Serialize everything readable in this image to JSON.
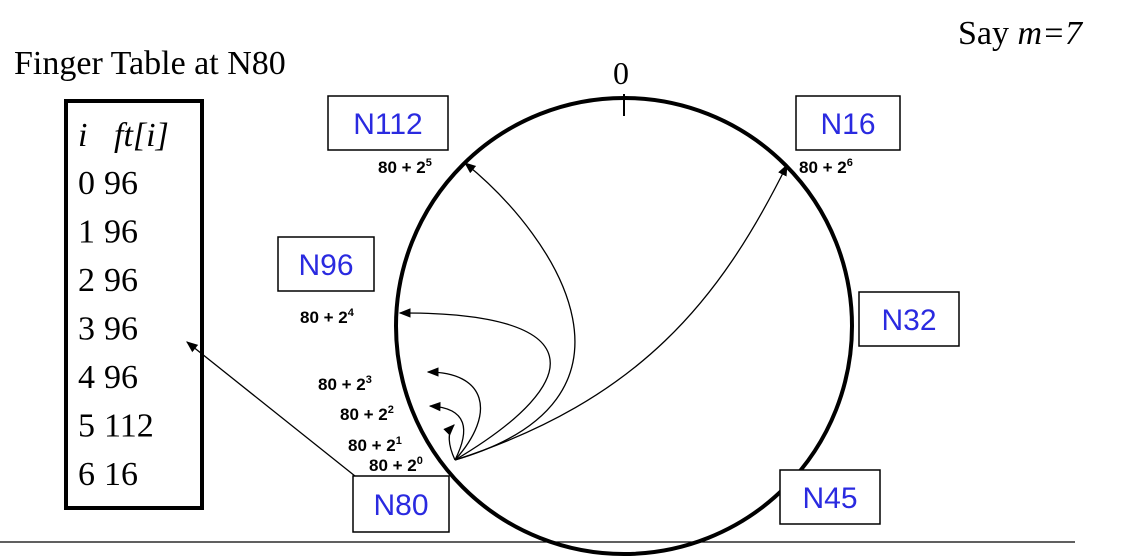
{
  "title": "Finger Table at N80",
  "note": {
    "prefix": "Say ",
    "var": "m",
    "eq": "=7"
  },
  "ring": {
    "zero_label": "0"
  },
  "table": {
    "headers": [
      "i",
      "ft[i]"
    ],
    "rows": [
      {
        "i": "0",
        "ft": "96"
      },
      {
        "i": "1",
        "ft": "96"
      },
      {
        "i": "2",
        "ft": "96"
      },
      {
        "i": "3",
        "ft": "96"
      },
      {
        "i": "4",
        "ft": "96"
      },
      {
        "i": "5",
        "ft": "112"
      },
      {
        "i": "6",
        "ft": "16"
      }
    ]
  },
  "nodes": [
    {
      "id": "n112",
      "label": "N112"
    },
    {
      "id": "n16",
      "label": "N16"
    },
    {
      "id": "n96",
      "label": "N96"
    },
    {
      "id": "n32",
      "label": "N32"
    },
    {
      "id": "n80",
      "label": "N80"
    },
    {
      "id": "n45",
      "label": "N45"
    }
  ],
  "fingers": [
    {
      "base": "80 + 2",
      "exp": "0"
    },
    {
      "base": "80 + 2",
      "exp": "1"
    },
    {
      "base": "80 + 2",
      "exp": "2"
    },
    {
      "base": "80 + 2",
      "exp": "3"
    },
    {
      "base": "80 + 2",
      "exp": "4"
    },
    {
      "base": "80 + 2",
      "exp": "5"
    },
    {
      "base": "80 + 2",
      "exp": "6"
    }
  ],
  "colors": {
    "node_text": "#2a2ae0",
    "line": "#000000"
  }
}
